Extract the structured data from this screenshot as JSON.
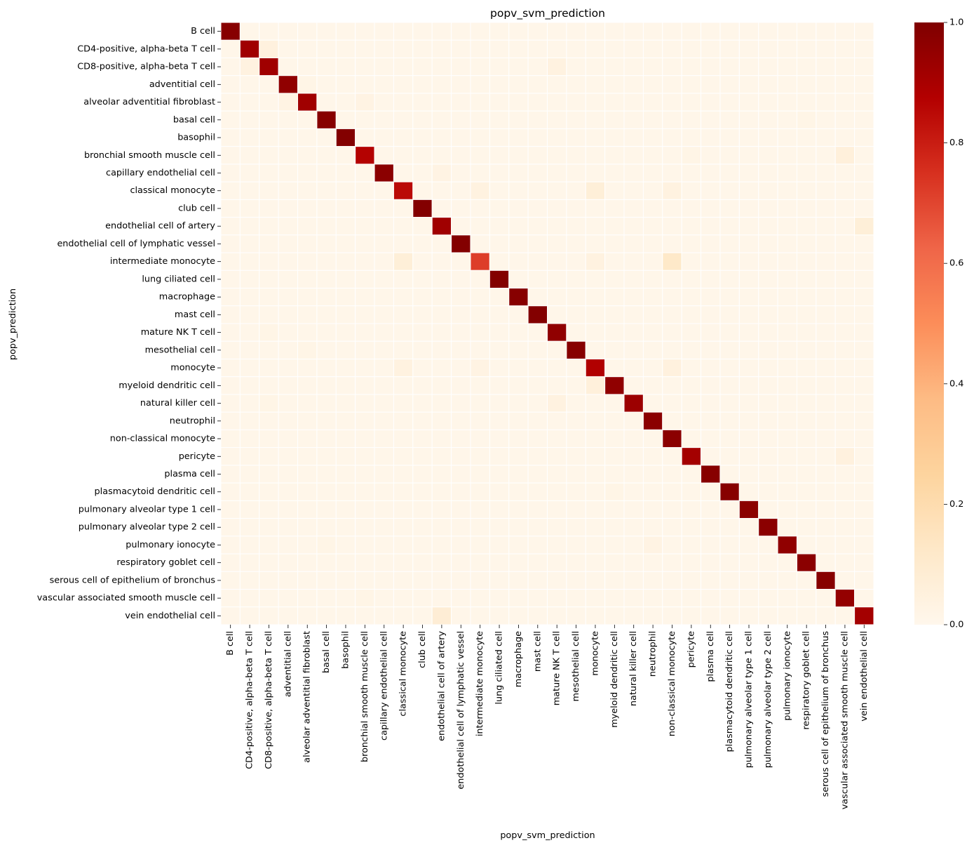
{
  "chart_data": {
    "type": "heatmap",
    "title": "popv_svm_prediction",
    "xlabel": "popv_svm_prediction",
    "ylabel": "popv_prediction",
    "categories": [
      "B cell",
      "CD4-positive, alpha-beta T cell",
      "CD8-positive, alpha-beta T cell",
      "adventitial cell",
      "alveolar adventitial fibroblast",
      "basal cell",
      "basophil",
      "bronchial smooth muscle cell",
      "capillary endothelial cell",
      "classical monocyte",
      "club cell",
      "endothelial cell of artery",
      "endothelial cell of lymphatic vessel",
      "intermediate monocyte",
      "lung ciliated cell",
      "macrophage",
      "mast cell",
      "mature NK T cell",
      "mesothelial cell",
      "monocyte",
      "myeloid dendritic cell",
      "natural killer cell",
      "neutrophil",
      "non-classical monocyte",
      "pericyte",
      "plasma cell",
      "plasmacytoid dendritic cell",
      "pulmonary alveolar type 1 cell",
      "pulmonary alveolar type 2 cell",
      "pulmonary ionocyte",
      "respiratory goblet cell",
      "serous cell of epithelium of bronchus",
      "vascular associated smooth muscle cell",
      "vein endothelial cell"
    ],
    "diagonal": [
      0.98,
      0.92,
      0.92,
      0.96,
      0.92,
      0.98,
      0.99,
      0.87,
      0.97,
      0.85,
      0.99,
      0.92,
      0.99,
      0.72,
      0.99,
      0.98,
      0.99,
      0.96,
      0.98,
      0.88,
      0.96,
      0.93,
      0.97,
      0.97,
      0.91,
      0.98,
      0.98,
      0.97,
      0.97,
      0.96,
      0.97,
      0.98,
      0.95,
      0.91
    ],
    "off_diagonal": [
      {
        "row": "CD4-positive, alpha-beta T cell",
        "col": "CD8-positive, alpha-beta T cell",
        "value": 0.05
      },
      {
        "row": "CD8-positive, alpha-beta T cell",
        "col": "CD4-positive, alpha-beta T cell",
        "value": 0.04
      },
      {
        "row": "CD8-positive, alpha-beta T cell",
        "col": "mature NK T cell",
        "value": 0.04
      },
      {
        "row": "adventitial cell",
        "col": "alveolar adventitial fibroblast",
        "value": 0.02
      },
      {
        "row": "alveolar adventitial fibroblast",
        "col": "adventitial cell",
        "value": 0.03
      },
      {
        "row": "alveolar adventitial fibroblast",
        "col": "bronchial smooth muscle cell",
        "value": 0.03
      },
      {
        "row": "basal cell",
        "col": "respiratory goblet cell",
        "value": 0.02
      },
      {
        "row": "bronchial smooth muscle cell",
        "col": "vascular associated smooth muscle cell",
        "value": 0.06
      },
      {
        "row": "bronchial smooth muscle cell",
        "col": "pericyte",
        "value": 0.02
      },
      {
        "row": "capillary endothelial cell",
        "col": "endothelial cell of artery",
        "value": 0.03
      },
      {
        "row": "classical monocyte",
        "col": "monocyte",
        "value": 0.07
      },
      {
        "row": "classical monocyte",
        "col": "intermediate monocyte",
        "value": 0.04
      },
      {
        "row": "classical monocyte",
        "col": "non-classical monocyte",
        "value": 0.04
      },
      {
        "row": "endothelial cell of artery",
        "col": "vein endothelial cell",
        "value": 0.07
      },
      {
        "row": "intermediate monocyte",
        "col": "non-classical monocyte",
        "value": 0.12
      },
      {
        "row": "intermediate monocyte",
        "col": "classical monocyte",
        "value": 0.07
      },
      {
        "row": "intermediate monocyte",
        "col": "monocyte",
        "value": 0.04
      },
      {
        "row": "mature NK T cell",
        "col": "CD8-positive, alpha-beta T cell",
        "value": 0.02
      },
      {
        "row": "mesothelial cell",
        "col": "alveolar adventitial fibroblast",
        "value": 0.02
      },
      {
        "row": "monocyte",
        "col": "classical monocyte",
        "value": 0.04
      },
      {
        "row": "monocyte",
        "col": "non-classical monocyte",
        "value": 0.05
      },
      {
        "row": "monocyte",
        "col": "intermediate monocyte",
        "value": 0.03
      },
      {
        "row": "myeloid dendritic cell",
        "col": "monocyte",
        "value": 0.06
      },
      {
        "row": "natural killer cell",
        "col": "mature NK T cell",
        "value": 0.04
      },
      {
        "row": "natural killer cell",
        "col": "CD8-positive, alpha-beta T cell",
        "value": 0.02
      },
      {
        "row": "pericyte",
        "col": "vascular associated smooth muscle cell",
        "value": 0.05
      },
      {
        "row": "plasmacytoid dendritic cell",
        "col": "myeloid dendritic cell",
        "value": 0.02
      },
      {
        "row": "pulmonary ionocyte",
        "col": "neutrophil",
        "value": 0.03
      },
      {
        "row": "pulmonary ionocyte",
        "col": "basal cell",
        "value": 0.02
      },
      {
        "row": "vascular associated smooth muscle cell",
        "col": "bronchial smooth muscle cell",
        "value": 0.02
      },
      {
        "row": "vein endothelial cell",
        "col": "endothelial cell of artery",
        "value": 0.08
      }
    ],
    "background_value": 0.01,
    "colormap": "OrRd",
    "colorbar": {
      "min": 0.0,
      "max": 1.0,
      "ticks": [
        "0.0",
        "0.2",
        "0.4",
        "0.6",
        "0.8",
        "1.0"
      ]
    },
    "grid_lines": "white",
    "colors": {
      "stops": [
        "#fff7ec",
        "#fee8c8",
        "#fdd49e",
        "#fdbb84",
        "#fc8d59",
        "#ef6548",
        "#d7301f",
        "#b30000",
        "#7f0000"
      ],
      "cell_border": "#ffffff"
    }
  }
}
